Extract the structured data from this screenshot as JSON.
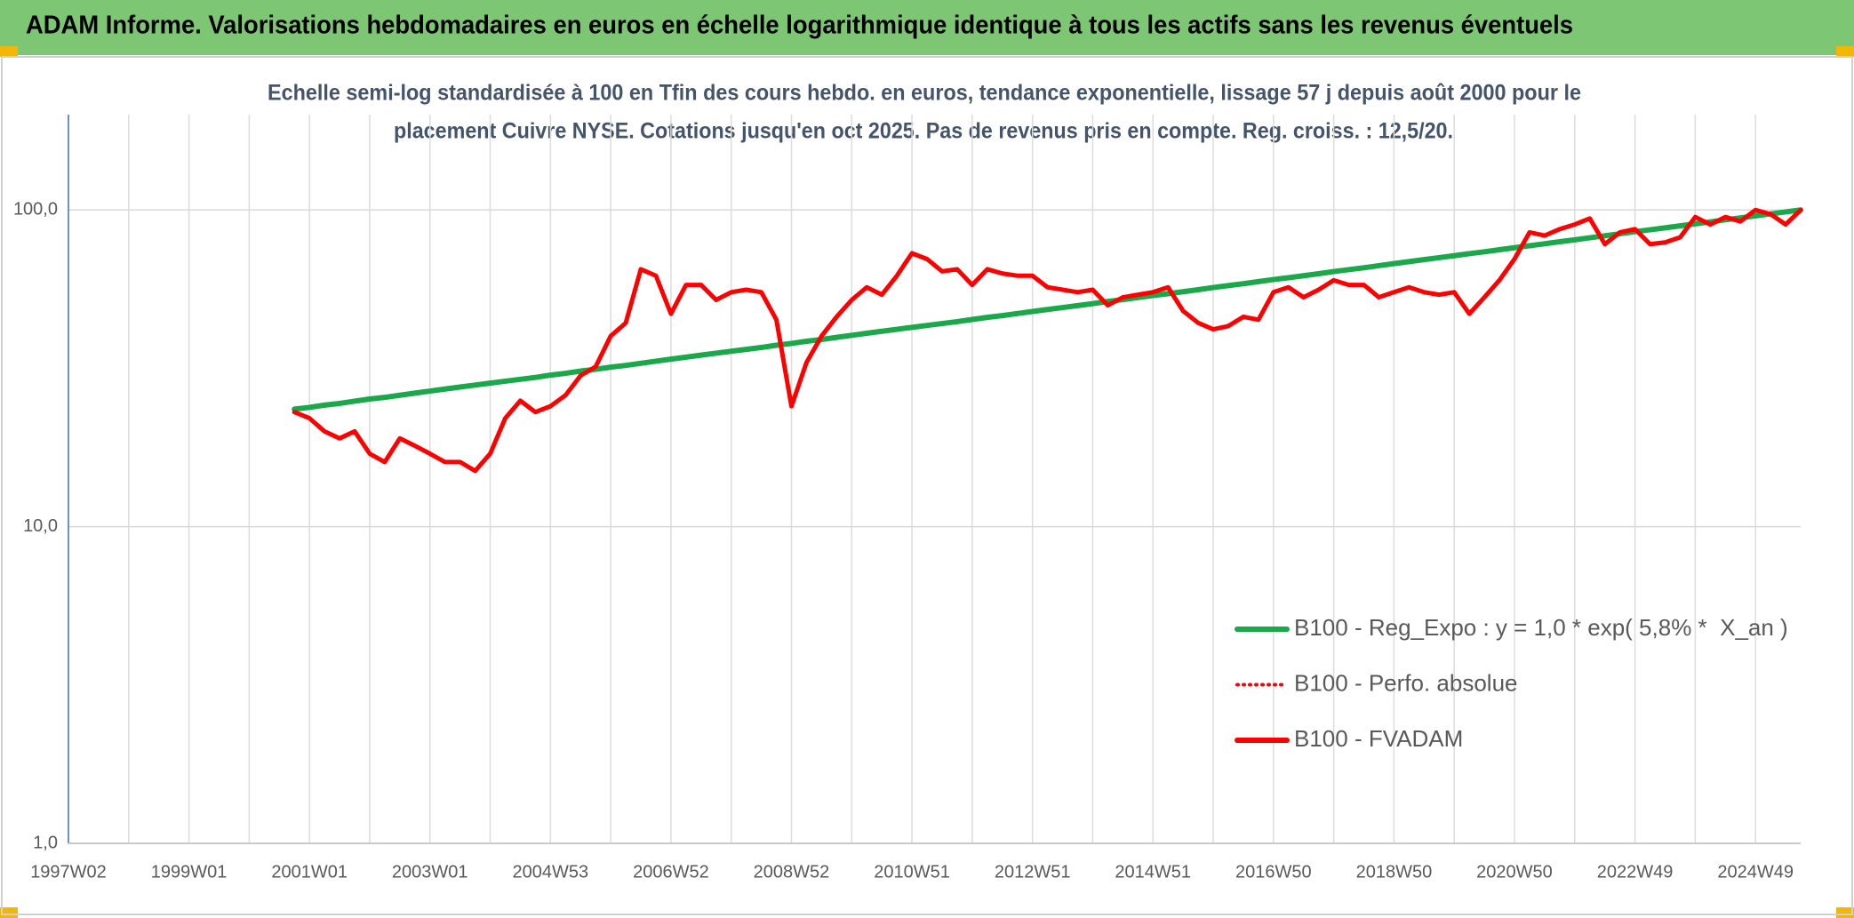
{
  "chart_data": {
    "type": "line",
    "title": "ADAM Informe. Valorisations hebdomadaires en euros en échelle logarithmique identique à tous les actifs sans les revenus éventuels",
    "subtitle": [
      "Echelle semi-log standardisée à 100 en Tfin des cours hebdo. en euros, tendance exponentielle, lissage 57 j depuis août 2000 pour le",
      "placement Cuivre NYSE. Cotations jusqu'en oct 2025. Pas de revenus pris en compte. Reg. croiss. : 12,5/20."
    ],
    "categories": [
      "1997W02",
      null,
      null,
      null,
      null,
      null,
      null,
      null,
      "1999W01",
      null,
      null,
      null,
      null,
      null,
      null,
      null,
      "2001W01",
      null,
      null,
      null,
      null,
      null,
      null,
      null,
      "2003W01",
      null,
      null,
      null,
      null,
      null,
      null,
      null,
      "2004W53",
      null,
      null,
      null,
      null,
      null,
      null,
      null,
      "2006W52",
      null,
      null,
      null,
      null,
      null,
      null,
      null,
      "2008W52",
      null,
      null,
      null,
      null,
      null,
      null,
      null,
      "2010W51",
      null,
      null,
      null,
      null,
      null,
      null,
      null,
      "2012W51",
      null,
      null,
      null,
      null,
      null,
      null,
      null,
      "2014W51",
      null,
      null,
      null,
      null,
      null,
      null,
      null,
      "2016W50",
      null,
      null,
      null,
      null,
      null,
      null,
      null,
      "2018W50",
      null,
      null,
      null,
      null,
      null,
      null,
      null,
      "2020W50",
      null,
      null,
      null,
      null,
      null,
      null,
      null,
      "2022W49",
      null,
      null,
      null,
      null,
      null,
      null,
      null,
      "2024W49",
      null,
      null,
      null
    ],
    "series": [
      {
        "name": "B100 - Reg_Expo : y = 1,0 * exp( 5,8% *  X_an )",
        "color": "#1aa84a",
        "style": "solid",
        "values": [
          null,
          null,
          null,
          null,
          null,
          null,
          null,
          null,
          null,
          null,
          null,
          null,
          null,
          null,
          null,
          23.5,
          23.8,
          24.2,
          24.5,
          24.9,
          25.3,
          25.6,
          26.0,
          26.4,
          26.8,
          27.2,
          27.6,
          28.0,
          28.4,
          28.8,
          29.2,
          29.6,
          30.1,
          30.5,
          31.0,
          31.4,
          31.9,
          32.3,
          32.8,
          33.3,
          33.8,
          34.3,
          34.8,
          35.3,
          35.8,
          36.3,
          36.8,
          37.4,
          37.9,
          38.5,
          39.0,
          39.6,
          40.2,
          40.8,
          41.4,
          42.0,
          42.6,
          43.2,
          43.8,
          44.4,
          45.1,
          45.8,
          46.4,
          47.1,
          47.8,
          48.5,
          49.2,
          49.9,
          50.6,
          51.4,
          52.1,
          52.9,
          53.7,
          54.4,
          55.2,
          56.0,
          56.9,
          57.7,
          58.5,
          59.4,
          60.3,
          61.1,
          62.0,
          62.9,
          63.9,
          64.8,
          65.7,
          66.7,
          67.7,
          68.7,
          69.7,
          70.7,
          71.7,
          72.8,
          73.8,
          74.9,
          76.0,
          77.1,
          78.2,
          79.4,
          80.5,
          81.7,
          82.9,
          84.1,
          85.4,
          86.6,
          87.8,
          89.1,
          90.4,
          91.7,
          93.1,
          94.4,
          95.8,
          97.2,
          98.6,
          100.0
        ]
      },
      {
        "name": "B100 - Perfo. absolue",
        "color": "#ff0000",
        "style": "dotted",
        "values": [
          null,
          null,
          null,
          null,
          null,
          null,
          null,
          null,
          null,
          null,
          null,
          null,
          null,
          null,
          null,
          23,
          22,
          20,
          19,
          20,
          17,
          16,
          19,
          18,
          17,
          16,
          16,
          15,
          17,
          22,
          25,
          23,
          24,
          26,
          30,
          32,
          40,
          44,
          65,
          62,
          47,
          58,
          58,
          52,
          55,
          56,
          55,
          45,
          24,
          33,
          40,
          46,
          52,
          57,
          54,
          62,
          73,
          70,
          64,
          65,
          58,
          65,
          63,
          62,
          62,
          57,
          56,
          55,
          56,
          50,
          53,
          54,
          55,
          57,
          48,
          44,
          42,
          43,
          46,
          45,
          55,
          57,
          53,
          56,
          60,
          58,
          58,
          53,
          55,
          57,
          55,
          54,
          55,
          47,
          53,
          60,
          70,
          85,
          83,
          87,
          90,
          94,
          78,
          85,
          87,
          78,
          79,
          82,
          95,
          90,
          95,
          92,
          100,
          97,
          90,
          100
        ]
      },
      {
        "name": "B100 - FVADAM",
        "color": "#ff0000",
        "style": "solid",
        "values": [
          null,
          null,
          null,
          null,
          null,
          null,
          null,
          null,
          null,
          null,
          null,
          null,
          null,
          null,
          null,
          23,
          22,
          20,
          19,
          20,
          17,
          16,
          19,
          18,
          17,
          16,
          16,
          15,
          17,
          22,
          25,
          23,
          24,
          26,
          30,
          32,
          40,
          44,
          65,
          62,
          47,
          58,
          58,
          52,
          55,
          56,
          55,
          45,
          24,
          33,
          40,
          46,
          52,
          57,
          54,
          62,
          73,
          70,
          64,
          65,
          58,
          65,
          63,
          62,
          62,
          57,
          56,
          55,
          56,
          50,
          53,
          54,
          55,
          57,
          48,
          44,
          42,
          43,
          46,
          45,
          55,
          57,
          53,
          56,
          60,
          58,
          58,
          53,
          55,
          57,
          55,
          54,
          55,
          47,
          53,
          60,
          70,
          85,
          83,
          87,
          90,
          94,
          78,
          85,
          87,
          78,
          79,
          82,
          95,
          90,
          95,
          92,
          100,
          97,
          90,
          100
        ]
      }
    ],
    "log_y": true,
    "ylim": [
      1,
      200
    ],
    "yticks": [
      {
        "value": 1,
        "label": "1,0"
      },
      {
        "value": 10,
        "label": "10,0"
      },
      {
        "value": 100,
        "label": "100,0"
      }
    ],
    "grid": true,
    "legend": "right"
  }
}
